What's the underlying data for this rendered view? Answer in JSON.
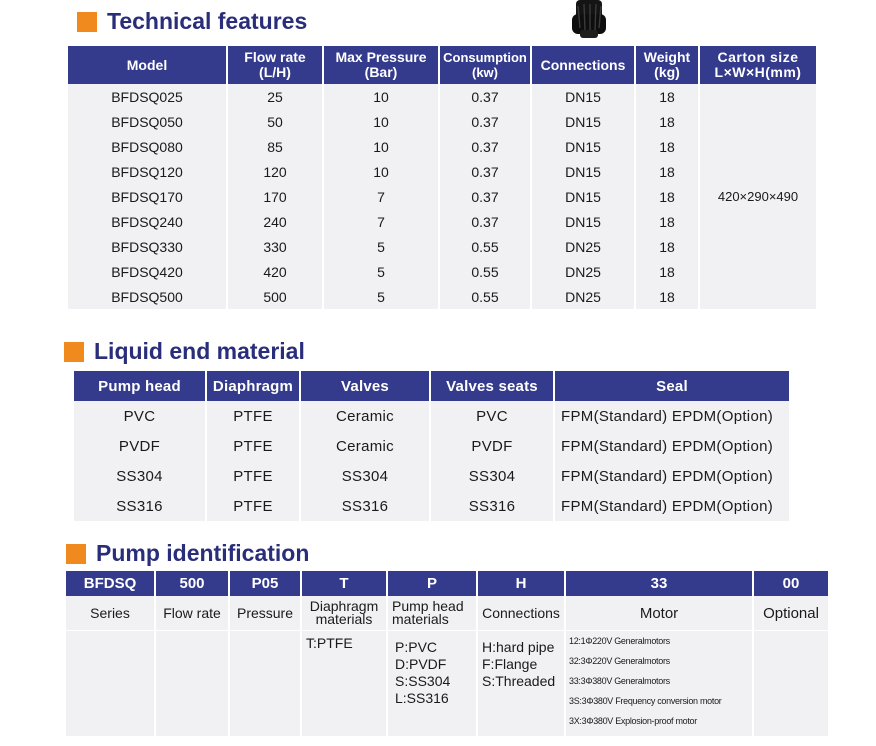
{
  "technical": {
    "title": "Technical features",
    "headers": [
      "Model",
      "Flow rate\n(L/H)",
      "Max Pressure\n(Bar)",
      "Consumption\n(kw)",
      "Connections",
      "Weight\n(kg)",
      "Carton  size\nL×W×H(mm)"
    ],
    "rows": [
      [
        "BFDSQ025",
        "25",
        "10",
        "0.37",
        "DN15",
        "18"
      ],
      [
        "BFDSQ050",
        "50",
        "10",
        "0.37",
        "DN15",
        "18"
      ],
      [
        "BFDSQ080",
        "85",
        "10",
        "0.37",
        "DN15",
        "18"
      ],
      [
        "BFDSQ120",
        "120",
        "10",
        "0.37",
        "DN15",
        "18"
      ],
      [
        "BFDSQ170",
        "170",
        "7",
        "0.37",
        "DN15",
        "18"
      ],
      [
        "BFDSQ240",
        "240",
        "7",
        "0.37",
        "DN15",
        "18"
      ],
      [
        "BFDSQ330",
        "330",
        "5",
        "0.55",
        "DN25",
        "18"
      ],
      [
        "BFDSQ420",
        "420",
        "5",
        "0.55",
        "DN25",
        "18"
      ],
      [
        "BFDSQ500",
        "500",
        "5",
        "0.55",
        "DN25",
        "18"
      ]
    ],
    "carton": "420×290×490"
  },
  "liquid": {
    "title": "Liquid end material",
    "headers": [
      "Pump  head",
      "Diaphragm",
      "Valves",
      "Valves  seats",
      "Seal"
    ],
    "rows": [
      [
        "PVC",
        "PTFE",
        "Ceramic",
        "PVC",
        "FPM(Standard) EPDM(Option)"
      ],
      [
        "PVDF",
        "PTFE",
        "Ceramic",
        "PVDF",
        "FPM(Standard) EPDM(Option)"
      ],
      [
        "SS304",
        "PTFE",
        "SS304",
        "SS304",
        "FPM(Standard) EPDM(Option)"
      ],
      [
        "SS316",
        "PTFE",
        "SS316",
        "SS316",
        "FPM(Standard) EPDM(Option)"
      ]
    ]
  },
  "ident": {
    "title": "Pump identification",
    "codes": [
      "BFDSQ",
      "500",
      "P05",
      "T",
      "P",
      "H",
      "33",
      "00"
    ],
    "labels": [
      "Series",
      "Flow rate",
      "Pressure",
      "Diaphragm\nmaterials",
      "Pump head\nmaterials",
      "Connections",
      "Motor",
      "Optional"
    ],
    "diaphragm": [
      "T:PTFE"
    ],
    "pumphead": [
      "P:PVC",
      "D:PVDF",
      "S:SS304",
      "L:SS316"
    ],
    "connections": [
      "H:hard pipe",
      "F:Flange",
      "S:Threaded"
    ],
    "motor": [
      "12:1Φ220V Generalmotors",
      "32:3Φ220V Generalmotors",
      "33:3Φ380V Generalmotors",
      "3S:3Φ380V Frequency conversion motor",
      "3X:3Φ380V Explosion-proof motor"
    ]
  }
}
